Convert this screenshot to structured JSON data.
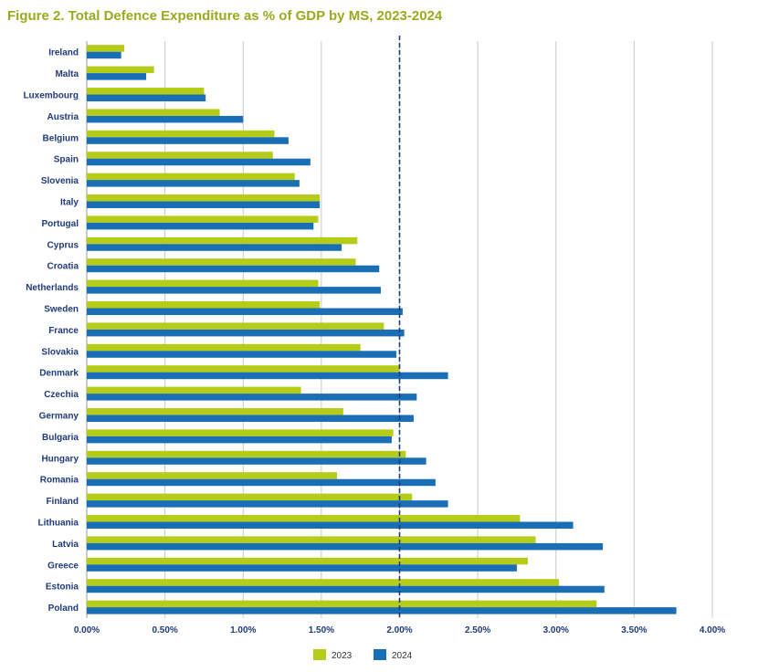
{
  "title": "Figure 2. Total Defence Expenditure as % of GDP by MS, 2023-2024",
  "colors": {
    "s2023": "#b5cc18",
    "s2024": "#1a6eb5",
    "grid": "#c8c8c8",
    "ref": "#1f3a7a",
    "text": "#1f3a7a",
    "title": "#9aaa1e"
  },
  "chart_data": {
    "type": "bar",
    "orientation": "horizontal",
    "title": "Figure 2. Total Defence Expenditure as % of GDP by MS, 2023-2024",
    "categories": [
      "Ireland",
      "Malta",
      "Luxembourg",
      "Austria",
      "Belgium",
      "Spain",
      "Slovenia",
      "Italy",
      "Portugal",
      "Cyprus",
      "Croatia",
      "Netherlands",
      "Sweden",
      "France",
      "Slovakia",
      "Denmark",
      "Czechia",
      "Germany",
      "Bulgaria",
      "Hungary",
      "Romania",
      "Finland",
      "Lithuania",
      "Latvia",
      "Greece",
      "Estonia",
      "Poland"
    ],
    "series": [
      {
        "name": "2023",
        "values": [
          0.24,
          0.43,
          0.75,
          0.85,
          1.2,
          1.19,
          1.33,
          1.49,
          1.48,
          1.73,
          1.72,
          1.48,
          1.49,
          1.9,
          1.75,
          2.0,
          1.37,
          1.64,
          1.96,
          2.04,
          1.6,
          2.08,
          2.77,
          2.87,
          2.82,
          3.02,
          3.26
        ]
      },
      {
        "name": "2024",
        "values": [
          0.22,
          0.38,
          0.76,
          1.0,
          1.29,
          1.43,
          1.36,
          1.49,
          1.45,
          1.63,
          1.87,
          1.88,
          2.02,
          2.03,
          1.98,
          2.31,
          2.11,
          2.09,
          1.95,
          2.17,
          2.23,
          2.31,
          3.11,
          3.3,
          2.75,
          3.31,
          3.77
        ]
      }
    ],
    "xlim": [
      0,
      4
    ],
    "xticks": [
      "0.00%",
      "0.50%",
      "1.00%",
      "1.50%",
      "2.00%",
      "2.50%",
      "3.00%",
      "3.50%",
      "4.00%"
    ],
    "reference_line": 2.0,
    "grid": true,
    "legend_position": "bottom-center"
  }
}
